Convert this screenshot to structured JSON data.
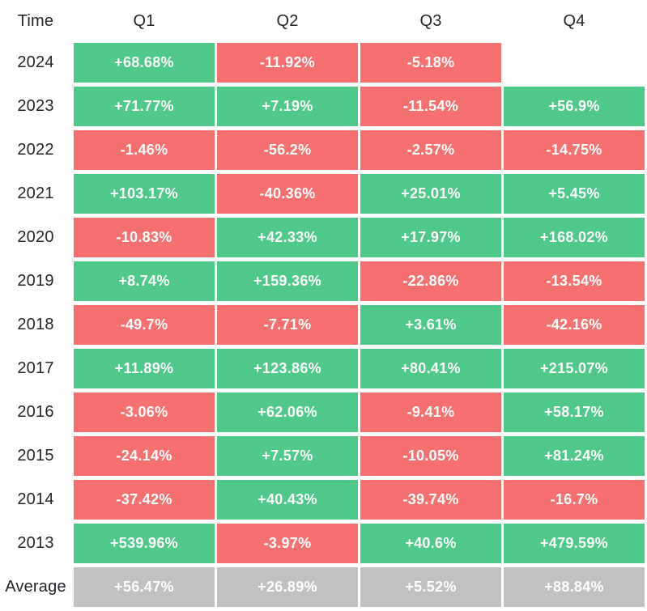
{
  "header": {
    "time_label": "Time",
    "columns": [
      "Q1",
      "Q2",
      "Q3",
      "Q4"
    ]
  },
  "colors": {
    "positive": "#4ec98a",
    "negative": "#f77070",
    "average": "#c1c1c1",
    "cell_text": "#ffffff",
    "label_text": "#25252b",
    "background": "#ffffff"
  },
  "chart_data": {
    "type": "heatmap",
    "row_label_header": "Time",
    "columns": [
      "Q1",
      "Q2",
      "Q3",
      "Q4"
    ],
    "rows": [
      {
        "label": "2024",
        "kind": "year",
        "values": [
          "+68.68%",
          "-11.92%",
          "-5.18%",
          null
        ]
      },
      {
        "label": "2023",
        "kind": "year",
        "values": [
          "+71.77%",
          "+7.19%",
          "-11.54%",
          "+56.9%"
        ]
      },
      {
        "label": "2022",
        "kind": "year",
        "values": [
          "-1.46%",
          "-56.2%",
          "-2.57%",
          "-14.75%"
        ]
      },
      {
        "label": "2021",
        "kind": "year",
        "values": [
          "+103.17%",
          "-40.36%",
          "+25.01%",
          "+5.45%"
        ]
      },
      {
        "label": "2020",
        "kind": "year",
        "values": [
          "-10.83%",
          "+42.33%",
          "+17.97%",
          "+168.02%"
        ]
      },
      {
        "label": "2019",
        "kind": "year",
        "values": [
          "+8.74%",
          "+159.36%",
          "-22.86%",
          "-13.54%"
        ]
      },
      {
        "label": "2018",
        "kind": "year",
        "values": [
          "-49.7%",
          "-7.71%",
          "+3.61%",
          "-42.16%"
        ]
      },
      {
        "label": "2017",
        "kind": "year",
        "values": [
          "+11.89%",
          "+123.86%",
          "+80.41%",
          "+215.07%"
        ]
      },
      {
        "label": "2016",
        "kind": "year",
        "values": [
          "-3.06%",
          "+62.06%",
          "-9.41%",
          "+58.17%"
        ]
      },
      {
        "label": "2015",
        "kind": "year",
        "values": [
          "-24.14%",
          "+7.57%",
          "-10.05%",
          "+81.24%"
        ]
      },
      {
        "label": "2014",
        "kind": "year",
        "values": [
          "-37.42%",
          "+40.43%",
          "-39.74%",
          "-16.7%"
        ]
      },
      {
        "label": "2013",
        "kind": "year",
        "values": [
          "+539.96%",
          "-3.97%",
          "+40.6%",
          "+479.59%"
        ]
      },
      {
        "label": "Average",
        "kind": "average",
        "values": [
          "+56.47%",
          "+26.89%",
          "+5.52%",
          "+88.84%"
        ]
      }
    ]
  }
}
